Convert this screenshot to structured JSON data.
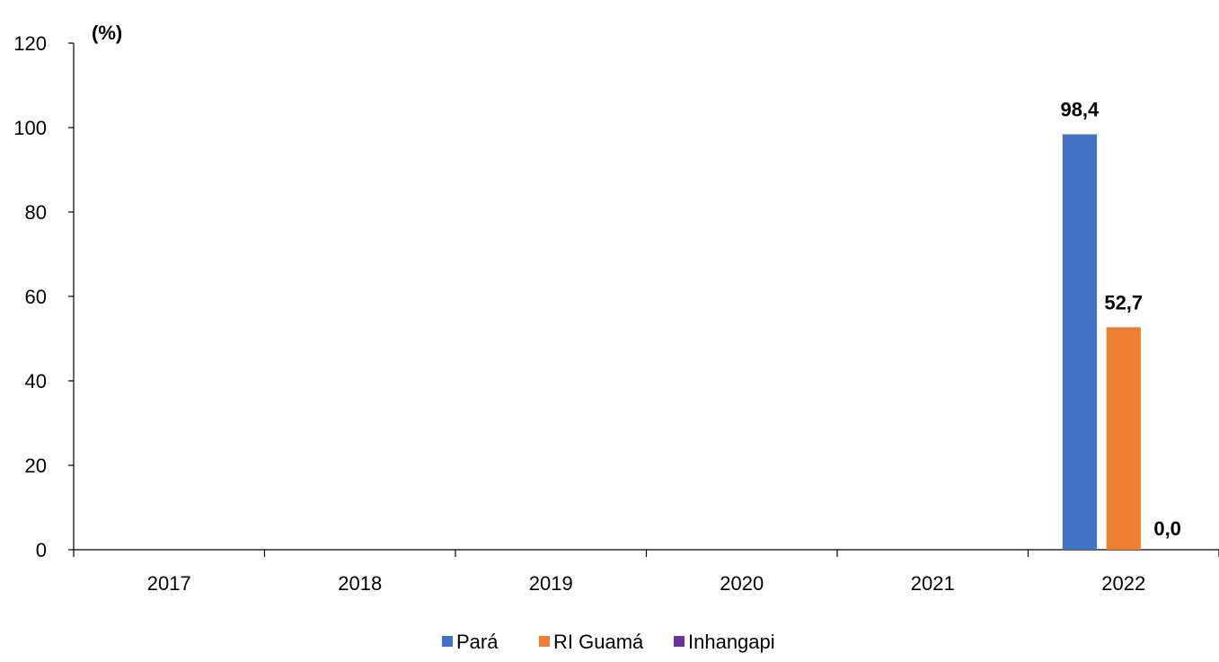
{
  "chart_data": {
    "type": "bar",
    "unit_label": "(%)",
    "categories": [
      "2017",
      "2018",
      "2019",
      "2020",
      "2021",
      "2022"
    ],
    "series": [
      {
        "name": "Pará",
        "color": "#4472C4",
        "values": [
          null,
          null,
          null,
          null,
          null,
          98.4
        ],
        "labels": [
          "",
          "",
          "",
          "",
          "",
          "98,4"
        ]
      },
      {
        "name": "RI Guamá",
        "color": "#ED7D31",
        "values": [
          null,
          null,
          null,
          null,
          null,
          52.7
        ],
        "labels": [
          "",
          "",
          "",
          "",
          "",
          "52,7"
        ]
      },
      {
        "name": "Inhangapi",
        "color": "#7030A0",
        "values": [
          null,
          null,
          null,
          null,
          null,
          0.0
        ],
        "labels": [
          "",
          "",
          "",
          "",
          "",
          "0,0"
        ]
      }
    ],
    "ylim": [
      0,
      120
    ],
    "yticks": [
      0,
      20,
      40,
      60,
      80,
      100,
      120
    ],
    "grid": false,
    "legend_position": "bottom"
  }
}
